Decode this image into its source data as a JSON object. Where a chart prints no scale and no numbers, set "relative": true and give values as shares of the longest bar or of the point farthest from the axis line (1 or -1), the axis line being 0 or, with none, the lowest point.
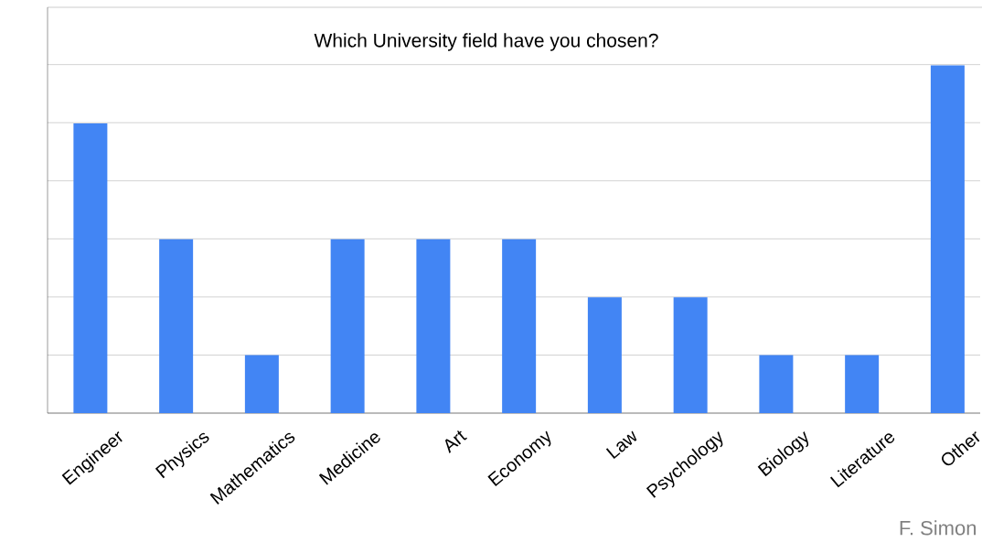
{
  "chart_data": {
    "type": "bar",
    "title": "Which University field have you chosen?",
    "categories": [
      "Engineer",
      "Physics",
      "Mathematics",
      "Medicine",
      "Art",
      "Economy",
      "Law",
      "Psychology",
      "Biology",
      "Literature",
      "Other"
    ],
    "values": [
      0.833,
      0.5,
      0.167,
      0.5,
      0.5,
      0.5,
      0.333,
      0.333,
      0.167,
      0.167,
      1
    ],
    "relative": true,
    "color": "#4285f4",
    "grid": "y",
    "annotations": [
      "F. Simon"
    ]
  }
}
